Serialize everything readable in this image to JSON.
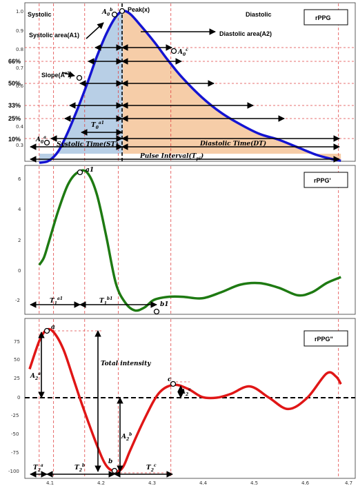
{
  "colors": {
    "ppg": "#1414d2",
    "d1": "#1e7a12",
    "d2": "#e01616",
    "systolic_fill": "#b8cfe6",
    "diastolic_fill": "#f6cda8",
    "guide": "#e04040"
  },
  "chart_data": [
    {
      "type": "area",
      "legend": "rPPG",
      "legend_position": "top-right",
      "ylim": [
        0.2,
        1.02
      ],
      "yticks": [
        "0.3",
        "0.4",
        "0.6",
        "0.7",
        "0.8",
        "0.9",
        "1.0"
      ],
      "left_labels": [
        "66%",
        "50%",
        "33%",
        "25%",
        "10%"
      ],
      "series": [
        {
          "x": [
            4.06,
            4.08,
            4.1,
            4.12,
            4.14,
            4.16,
            4.18,
            4.2,
            4.22,
            4.235,
            4.25,
            4.27,
            4.3,
            4.33,
            4.36,
            4.4,
            4.44,
            4.48,
            4.52,
            4.56,
            4.6,
            4.64,
            4.67,
            4.69
          ],
          "values": [
            0.21,
            0.22,
            0.27,
            0.37,
            0.49,
            0.62,
            0.76,
            0.88,
            0.97,
            1.0,
            0.985,
            0.93,
            0.84,
            0.74,
            0.65,
            0.55,
            0.47,
            0.41,
            0.36,
            0.33,
            0.29,
            0.25,
            0.23,
            0.22
          ]
        }
      ],
      "annotations": {
        "systolic": "Systolic",
        "diastolic": "Diastolic",
        "peak": "Peak(x)",
        "systolic_area": "Systolic area(A1)",
        "diastolic_area": "Diastolic area(A2)",
        "slope": "Slope(A",
        "slope_sup": "a1",
        "a0b": "A",
        "a0b_sub": "0",
        "a0b_sup": "b",
        "a0c": "A",
        "a0c_sub": "0",
        "a0c_sup": "c",
        "a0a": "A",
        "a0a_sub": "0",
        "a0a_sup": "a",
        "t0": "T",
        "t0_sub": "0",
        "t0_sup": "a1",
        "systolic_time": "Systolic Time(ST)",
        "diastolic_time": "Diastolic Time(DT)",
        "pulse_interval": "Pulse Interval(T",
        "pulse_interval_sub": "pi",
        "close_paren": ")"
      }
    },
    {
      "type": "line",
      "legend": "rPPG'",
      "legend_position": "top-right",
      "ylim": [
        -3,
        7
      ],
      "yticks": [
        "6",
        "4",
        "2",
        "0",
        "-2"
      ],
      "series": [
        {
          "x": [
            4.06,
            4.07,
            4.08,
            4.1,
            4.12,
            4.14,
            4.16,
            4.18,
            4.2,
            4.22,
            4.24,
            4.26,
            4.28,
            4.3,
            4.33,
            4.36,
            4.4,
            4.44,
            4.48,
            4.52,
            4.56,
            4.6,
            4.63,
            4.66,
            4.69
          ],
          "values": [
            0.3,
            0.8,
            1.8,
            3.9,
            5.6,
            6.4,
            6.4,
            5.0,
            2.2,
            -0.9,
            -2.2,
            -2.7,
            -2.5,
            -2.0,
            -1.8,
            -1.8,
            -1.9,
            -1.5,
            -1.0,
            -0.9,
            -1.2,
            -1.7,
            -1.5,
            -0.9,
            -0.5
          ]
        }
      ],
      "annotations": {
        "a1": "a1",
        "b1": "b1",
        "t1a": "T",
        "t1a_sub": "1",
        "t1a_sup": "a1",
        "t1b": "T",
        "t1b_sub": "1",
        "t1b_sup": "b1"
      }
    },
    {
      "type": "line",
      "legend": "rPPG\"",
      "legend_position": "top-right",
      "xlim": [
        4.03,
        4.72
      ],
      "xticks": [
        "4.1",
        "4.2",
        "4.3",
        "4.4",
        "4.5",
        "4.6",
        "4.7"
      ],
      "ylim": [
        -105,
        95
      ],
      "yticks": [
        "75",
        "50",
        "25",
        "0",
        "-25",
        "-50",
        "-75",
        "-100"
      ],
      "series": [
        {
          "x": [
            4.04,
            4.06,
            4.075,
            4.09,
            4.11,
            4.13,
            4.15,
            4.18,
            4.2,
            4.22,
            4.235,
            4.25,
            4.28,
            4.31,
            4.34,
            4.37,
            4.4,
            4.43,
            4.46,
            4.5,
            4.54,
            4.58,
            4.62,
            4.66,
            4.68,
            4.69
          ],
          "values": [
            38,
            75,
            90,
            87,
            65,
            28,
            -10,
            -62,
            -90,
            -98,
            -92,
            -70,
            -28,
            6,
            17,
            12,
            1,
            0,
            5,
            15,
            0,
            -15,
            0,
            32,
            28,
            18
          ]
        }
      ],
      "annotations": {
        "a": "a",
        "b": "b",
        "c": "c",
        "total_intensity": "Total intensity",
        "a2a": "A",
        "a2a_sub": "2",
        "a2a_sup": "a",
        "a2b": "A",
        "a2b_sub": "2",
        "a2b_sup": "b",
        "a2c": "A",
        "a2c_sub": "2",
        "a2c_sup": "c",
        "t2a": "T",
        "t2a_sub": "2",
        "t2a_sup": "a",
        "t2b": "T",
        "t2b_sub": "2",
        "t2b_sup": "b",
        "t2c": "T",
        "t2c_sub": "2",
        "t2c_sup": "c"
      }
    }
  ]
}
